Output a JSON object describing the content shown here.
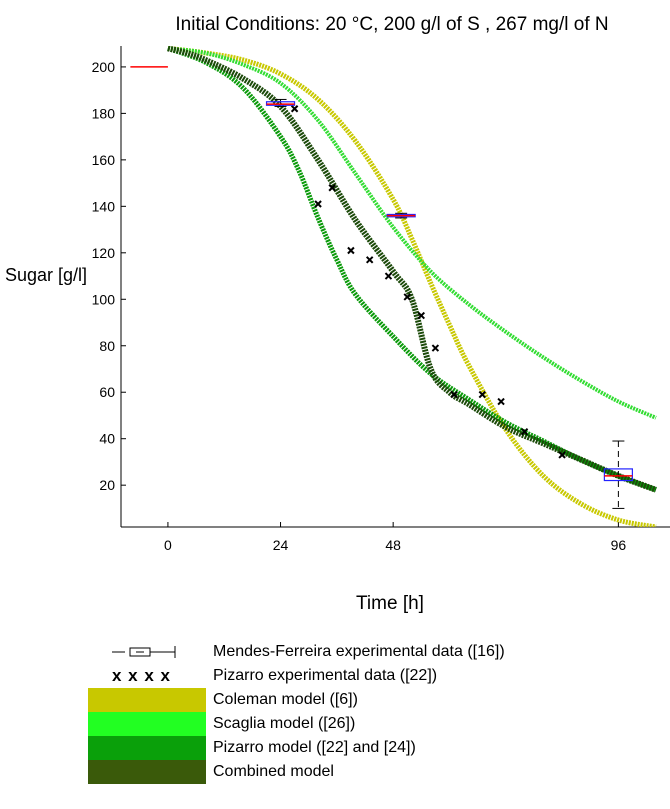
{
  "chart_data": {
    "type": "line",
    "title": "Initial Conditions: 20 °C, 200 g/l of S , 267 mg/l of N",
    "xlabel": "Time [h]",
    "ylabel": "Sugar [g/l]",
    "xlim": [
      -10,
      107
    ],
    "ylim": [
      2,
      209
    ],
    "xticks": [
      0,
      24,
      48,
      96
    ],
    "yticks": [
      20,
      40,
      60,
      80,
      100,
      120,
      140,
      160,
      180,
      200
    ],
    "legend_position": "bottom",
    "series": [
      {
        "name": "Coleman model ([6])",
        "color": "#c8c800",
        "x": [
          0,
          8,
          16,
          24,
          32,
          40,
          48,
          52,
          56,
          60,
          64,
          72,
          80,
          88,
          96,
          104
        ],
        "values": [
          208,
          206,
          203,
          197,
          186,
          168,
          143,
          126,
          107,
          89,
          72,
          44,
          24,
          12,
          5,
          2
        ]
      },
      {
        "name": "Scaglia model ([26])",
        "color": "#32dc32",
        "x": [
          0,
          8,
          16,
          24,
          32,
          40,
          48,
          56,
          64,
          72,
          80,
          88,
          96,
          104
        ],
        "values": [
          208,
          206,
          201,
          193,
          177,
          154,
          131,
          112,
          98,
          86,
          75,
          65,
          56,
          49
        ]
      },
      {
        "name": "Pizarro model ([22] and [24])",
        "color": "#0a9a0a",
        "x": [
          0,
          8,
          16,
          24,
          28,
          32,
          36,
          40,
          48,
          56,
          64,
          72,
          80,
          88,
          96,
          104
        ],
        "values": [
          208,
          202,
          191,
          170,
          155,
          135,
          117,
          102,
          84,
          68,
          57,
          47,
          39,
          31,
          24,
          18
        ]
      },
      {
        "name": "Combined model",
        "color": "#1c4a0a",
        "x": [
          0,
          4,
          8,
          16,
          24,
          32,
          40,
          48,
          52,
          56,
          60,
          64,
          72,
          80,
          88,
          96,
          104
        ],
        "values": [
          208,
          206,
          203,
          195,
          183,
          160,
          134,
          112,
          100,
          70,
          60,
          55,
          45,
          38,
          31,
          24,
          18
        ]
      }
    ],
    "pizarro_experimental": {
      "name": "Pizarro experimental data ([22])",
      "x": [
        27,
        32,
        35,
        39,
        43,
        47,
        51,
        54,
        57,
        61,
        67,
        71,
        76,
        84
      ],
      "values": [
        182,
        141,
        148,
        121,
        117,
        110,
        101,
        93,
        79,
        59,
        59,
        56,
        43,
        33
      ]
    },
    "mendes_ferreira_experimental": {
      "name": "Mendes-Ferreira experimental data ([16])",
      "points": [
        {
          "x": 24,
          "y": 184,
          "low": 183,
          "high": 186,
          "q1": 183.5,
          "q3": 185
        },
        {
          "x": 48,
          "y": 136,
          "low": 135,
          "high": 137,
          "q1": 135.5,
          "q3": 136.5
        },
        {
          "x": 96,
          "y": 24,
          "low": 10,
          "high": 39,
          "q1": 22,
          "q3": 27
        }
      ]
    },
    "reference_line": {
      "x": [
        -8,
        0
      ],
      "y": 200,
      "color": "#ff0000"
    }
  },
  "legend": [
    {
      "label": "Mendes-Ferreira experimental data ([16])",
      "kind": "boxplot"
    },
    {
      "label": "Pizarro experimental data ([22])",
      "kind": "marker",
      "glyph": "x x x x"
    },
    {
      "label": "Coleman model ([6])",
      "kind": "swatch",
      "color": "#c8c800"
    },
    {
      "label": "Scaglia model ([26])",
      "kind": "swatch",
      "color": "#22ff22"
    },
    {
      "label": "Pizarro model ([22] and [24])",
      "kind": "swatch",
      "color": "#0aa00a"
    },
    {
      "label": "Combined model",
      "kind": "swatch",
      "color": "#3a5a0a"
    }
  ]
}
